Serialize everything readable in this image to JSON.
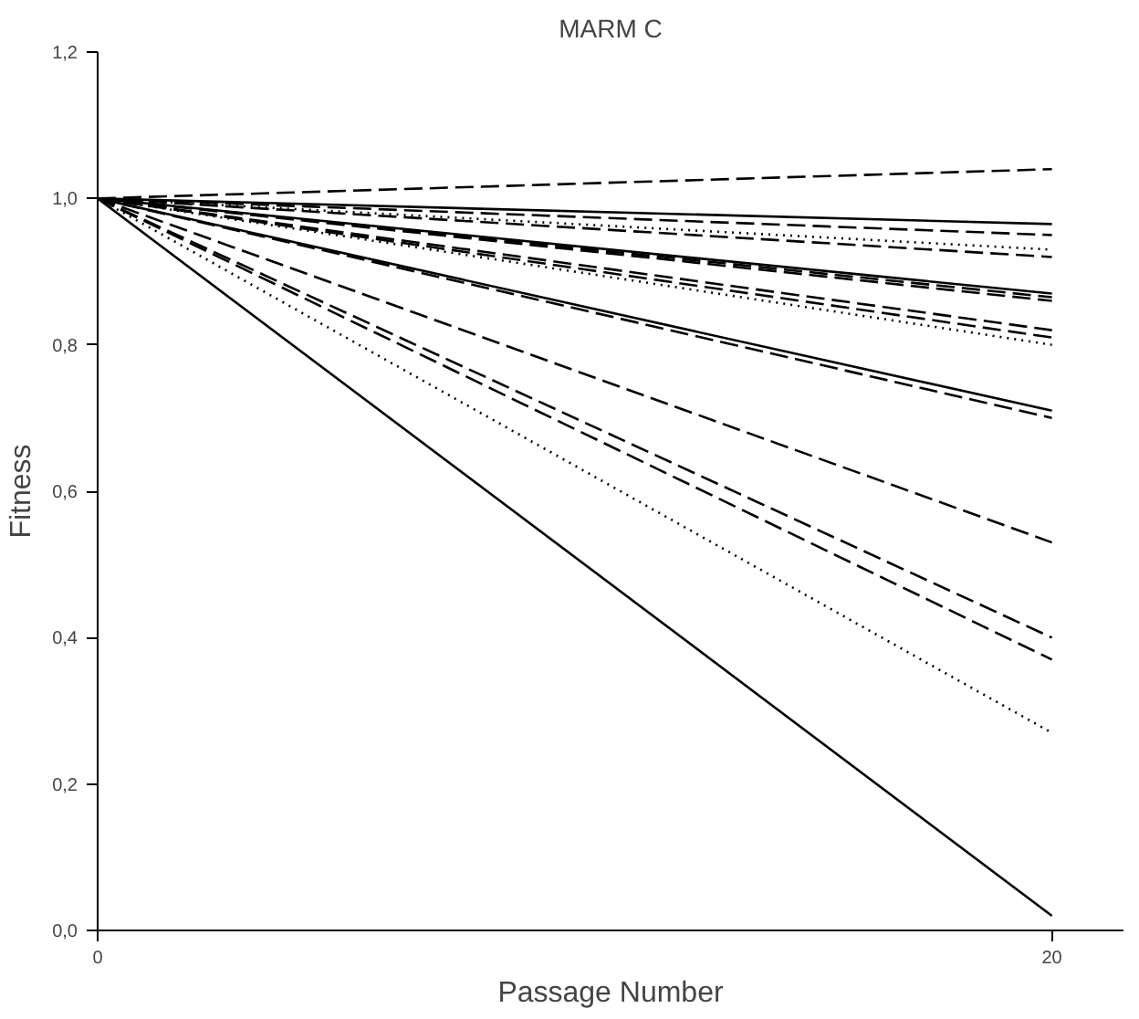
{
  "chart_data": {
    "type": "line",
    "title": "MARM C",
    "xlabel": "Passage Number",
    "ylabel": "Fitness",
    "x": [
      0,
      20
    ],
    "xlim": [
      0,
      21.5
    ],
    "ylim": [
      0,
      1.2
    ],
    "xticks": [
      0,
      20
    ],
    "yticks": [
      {
        "value": 0,
        "label": "0,0"
      },
      {
        "value": 0.2,
        "label": "0,2"
      },
      {
        "value": 0.4,
        "label": "0,4"
      },
      {
        "value": 0.6,
        "label": "0,6"
      },
      {
        "value": 0.8,
        "label": "0,8"
      },
      {
        "value": 1.0,
        "label": "1,0"
      },
      {
        "value": 1.2,
        "label": "1,2"
      }
    ],
    "grid": false,
    "marker": "none",
    "series": [
      {
        "color": "#000000",
        "line_style": "dashed",
        "values": [
          1.0,
          1.04
        ]
      },
      {
        "color": "#000000",
        "line_style": "solid",
        "values": [
          1.0,
          0.965
        ]
      },
      {
        "color": "#000000",
        "line_style": "dashed",
        "values": [
          1.0,
          0.95
        ]
      },
      {
        "color": "#000000",
        "line_style": "dotted",
        "values": [
          1.0,
          0.93
        ]
      },
      {
        "color": "#000000",
        "line_style": "dashed",
        "values": [
          1.0,
          0.92
        ]
      },
      {
        "color": "#000000",
        "line_style": "solid",
        "values": [
          1.0,
          0.87
        ]
      },
      {
        "color": "#000000",
        "line_style": "dashed",
        "values": [
          1.0,
          0.865
        ]
      },
      {
        "color": "#000000",
        "line_style": "dashed",
        "values": [
          1.0,
          0.86
        ]
      },
      {
        "color": "#000000",
        "line_style": "dashed",
        "values": [
          1.0,
          0.82
        ]
      },
      {
        "color": "#000000",
        "line_style": "dashed",
        "values": [
          1.0,
          0.81
        ]
      },
      {
        "color": "#000000",
        "line_style": "dotted",
        "values": [
          1.0,
          0.8
        ]
      },
      {
        "color": "#000000",
        "line_style": "solid",
        "values": [
          1.0,
          0.71
        ]
      },
      {
        "color": "#000000",
        "line_style": "dashed",
        "values": [
          1.0,
          0.7
        ]
      },
      {
        "color": "#000000",
        "line_style": "dashed",
        "values": [
          1.0,
          0.53
        ]
      },
      {
        "color": "#000000",
        "line_style": "dashed",
        "values": [
          1.0,
          0.4
        ]
      },
      {
        "color": "#000000",
        "line_style": "dashed",
        "values": [
          1.0,
          0.37
        ]
      },
      {
        "color": "#000000",
        "line_style": "dotted",
        "values": [
          1.0,
          0.27
        ]
      },
      {
        "color": "#000000",
        "line_style": "solid",
        "values": [
          1.0,
          0.02
        ]
      }
    ]
  }
}
